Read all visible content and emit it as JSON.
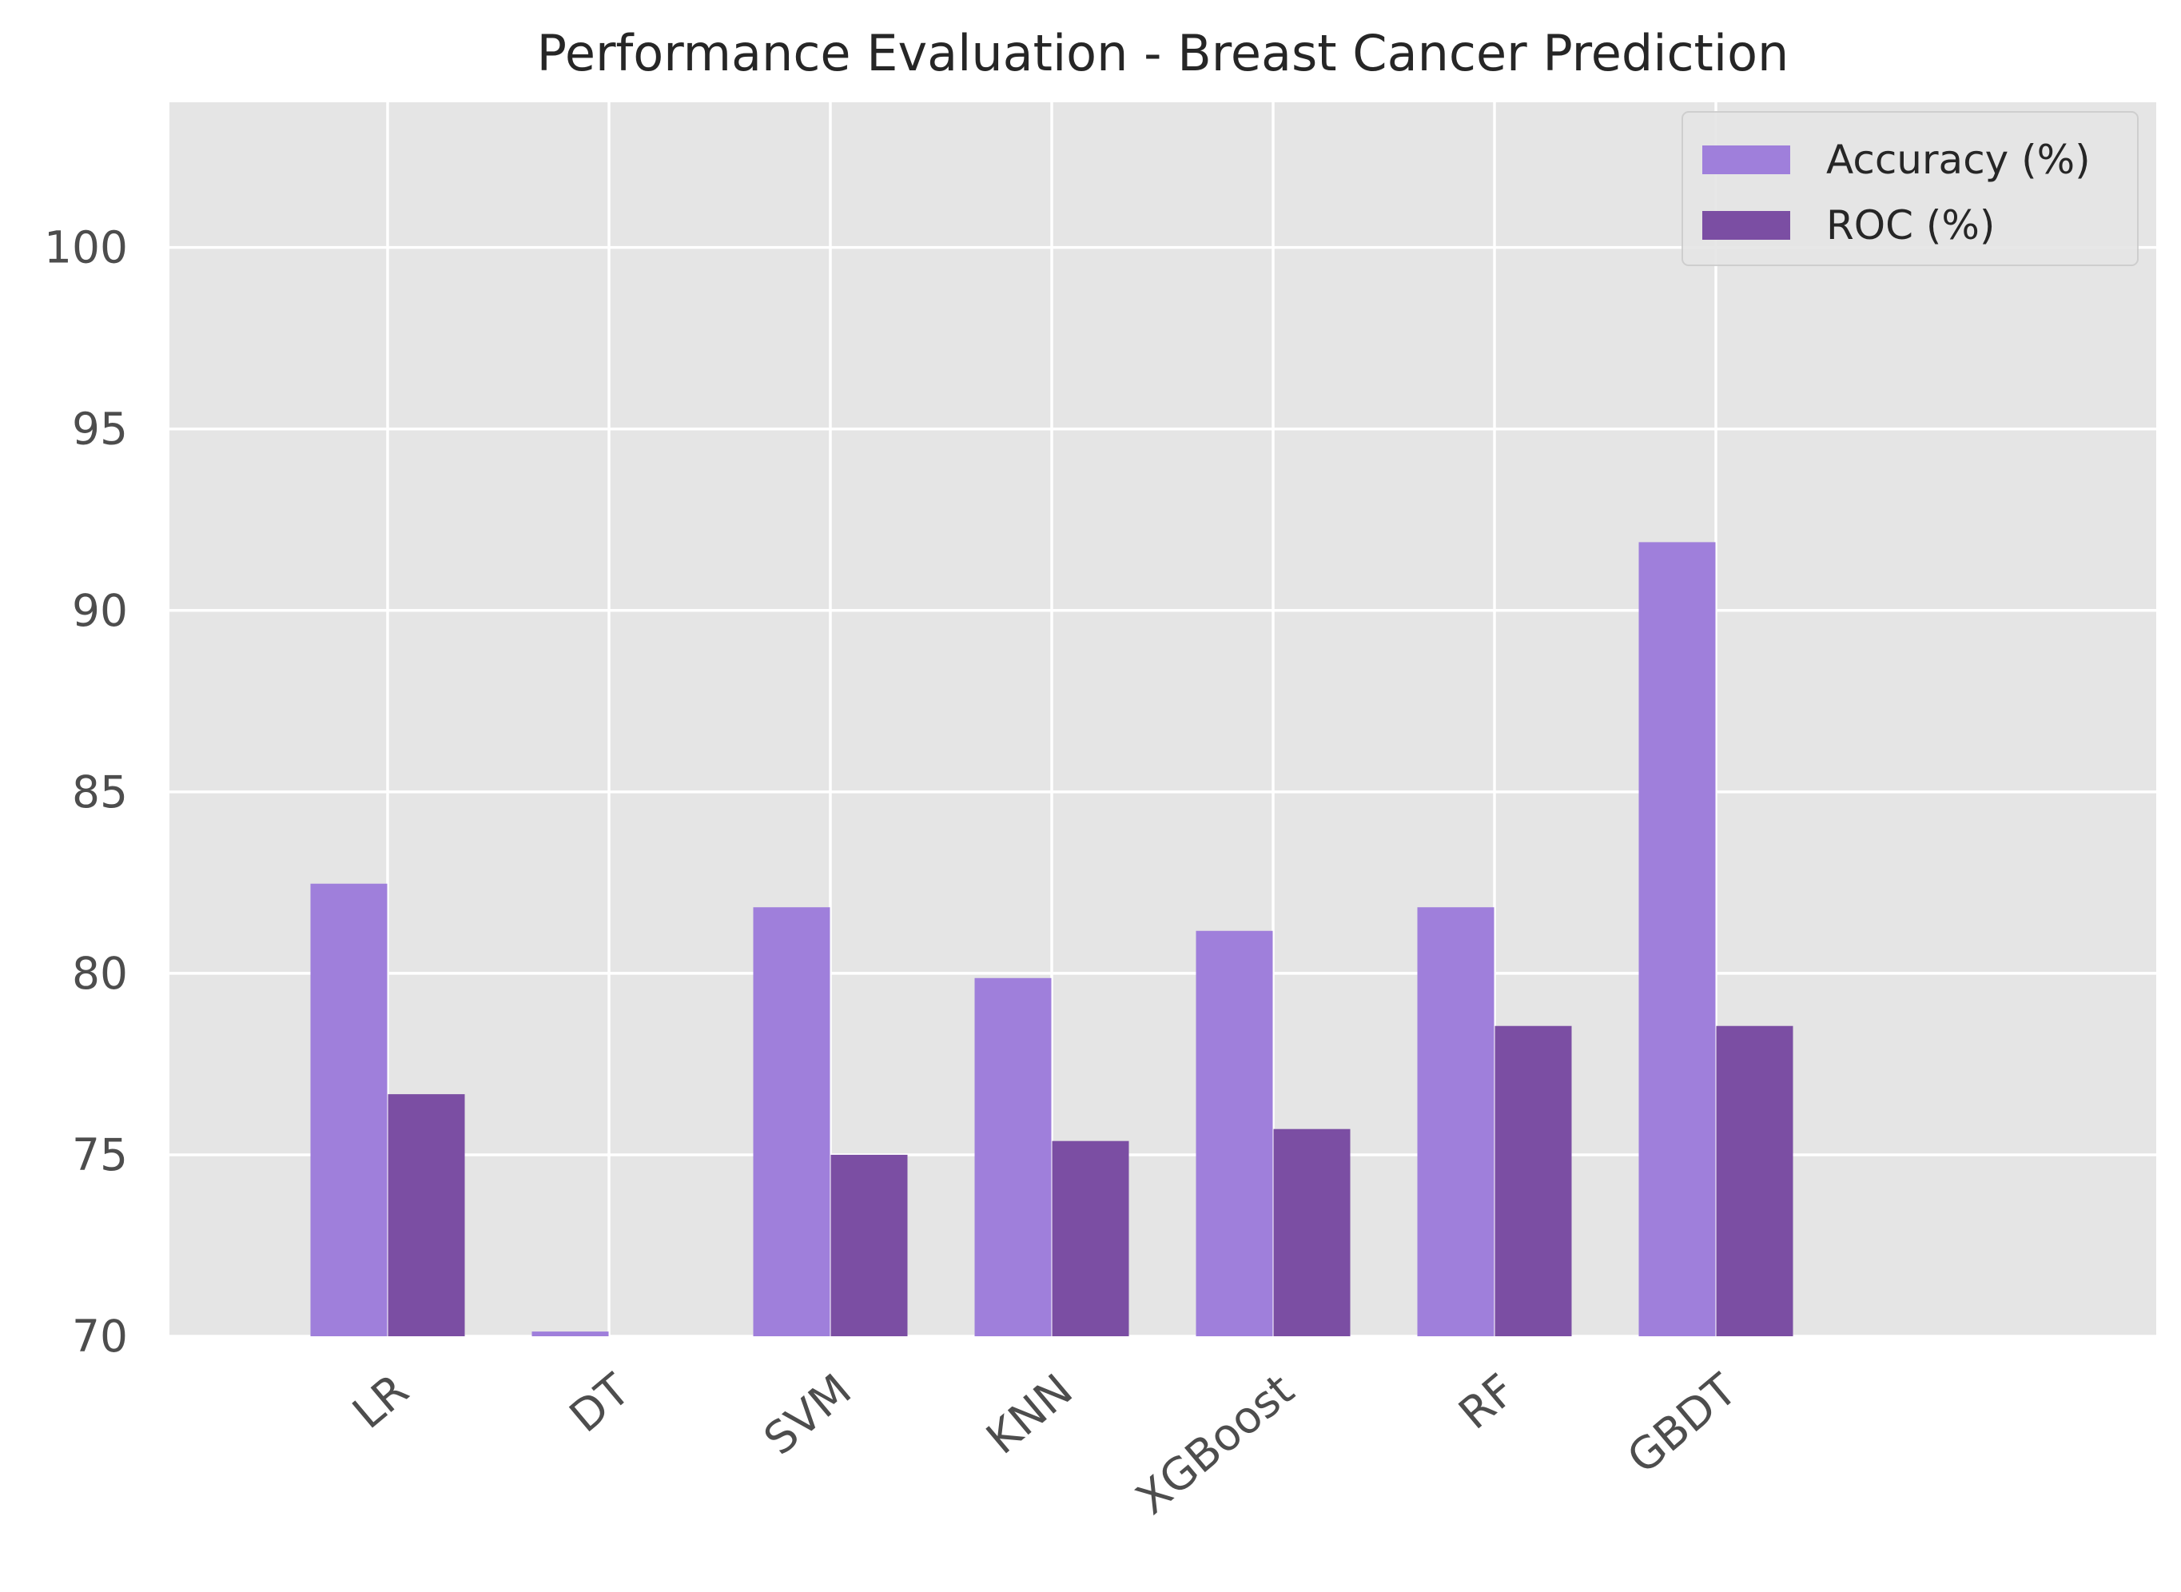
{
  "chart_data": {
    "type": "bar",
    "title": "Performance Evaluation - Breast Cancer Prediction",
    "xlabel": "",
    "ylabel": "",
    "categories": [
      "LR",
      "DT",
      "SVM",
      "KNN",
      "XGBoost",
      "RF",
      "GBDT"
    ],
    "series": [
      {
        "name": "Accuracy (%)",
        "color": "#9f7fdb",
        "values": [
          82.47,
          70.13,
          81.82,
          79.87,
          81.17,
          81.82,
          91.88
        ]
      },
      {
        "name": "ROC (%)",
        "color": "#7b4ea3",
        "values": [
          76.67,
          70.0,
          75.0,
          75.38,
          75.71,
          78.55,
          78.55
        ]
      }
    ],
    "ylim": [
      70,
      104
    ],
    "yticks": [
      70,
      75,
      80,
      85,
      90,
      95,
      100
    ],
    "grid": true,
    "legend_position": "top-right",
    "background_color": "#e5e5e5",
    "grid_color": "#ffffff"
  }
}
